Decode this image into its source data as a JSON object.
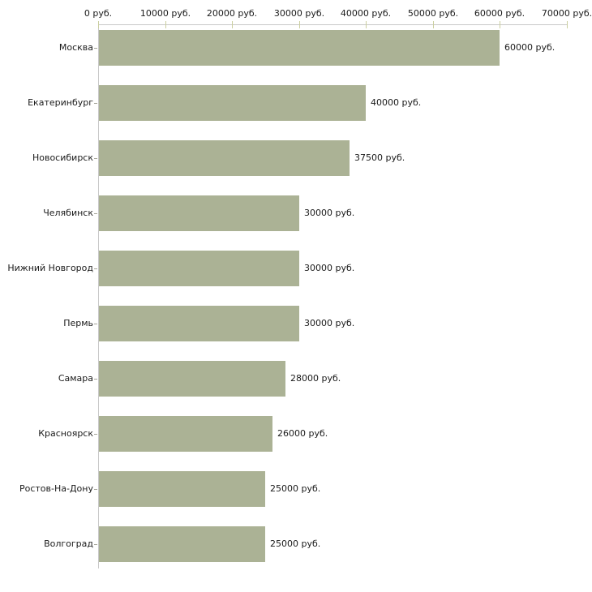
{
  "chart_data": {
    "type": "bar",
    "orientation": "horizontal",
    "title": "",
    "xlabel": "",
    "ylabel": "",
    "categories": [
      "Москва",
      "Екатеринбург",
      "Новосибирск",
      "Челябинск",
      "Нижний Новгород",
      "Пермь",
      "Самара",
      "Красноярск",
      "Ростов-На-Дону",
      "Волгоград"
    ],
    "values": [
      60000,
      40000,
      37500,
      30000,
      30000,
      30000,
      28000,
      26000,
      25000,
      25000
    ],
    "value_labels": [
      "60000 руб.",
      "40000 руб.",
      "37500 руб.",
      "30000 руб.",
      "30000 руб.",
      "30000 руб.",
      "28000 руб.",
      "26000 руб.",
      "25000 руб.",
      "25000 руб."
    ],
    "x_ticks": [
      0,
      10000,
      20000,
      30000,
      40000,
      50000,
      60000,
      70000
    ],
    "x_tick_labels": [
      "0 руб.",
      "10000 руб.",
      "20000 руб.",
      "30000 руб.",
      "40000 руб.",
      "50000 руб.",
      "60000 руб.",
      "70000 руб."
    ],
    "xlim": [
      0,
      70000
    ],
    "unit": "руб.",
    "grid": false,
    "legend": false,
    "colors": {
      "bar_fill": "#abb295",
      "axis_line": "#c8c8c8",
      "x_tick": "#cbcf9f",
      "category_tick": "#a6a69a",
      "text": "#1a1a1a",
      "background": "#ffffff"
    }
  }
}
